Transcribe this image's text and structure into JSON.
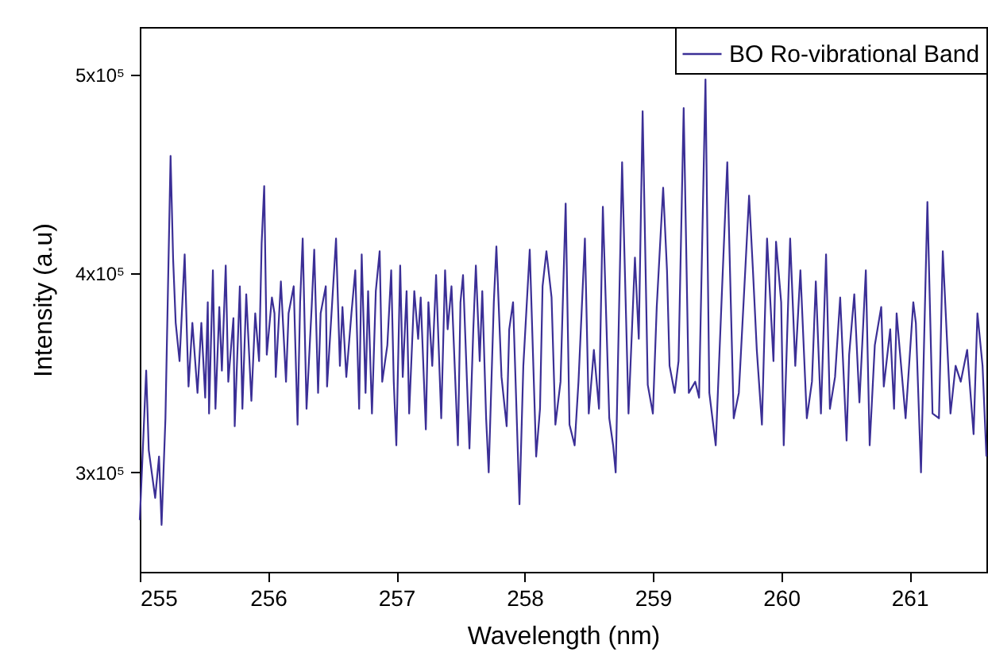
{
  "chart_data": {
    "type": "line",
    "xlabel": "Wavelength (nm)",
    "ylabel": "Intensity (a.u)",
    "xlim": [
      255,
      261.6
    ],
    "ylim": [
      250000,
      524000
    ],
    "xticks": [
      255,
      256,
      257,
      258,
      259,
      260,
      261
    ],
    "yticks": [
      {
        "value": 300000,
        "label": "3x10⁵"
      },
      {
        "value": 400000,
        "label": "4x10⁵"
      },
      {
        "value": 500000,
        "label": "5x10⁵"
      }
    ],
    "grid": false,
    "legend": "top right",
    "marker": "none",
    "line_style": "solid",
    "x": [
      255.0,
      255.05,
      255.07,
      255.12,
      255.15,
      255.17,
      255.2,
      255.24,
      255.26,
      255.28,
      255.31,
      255.35,
      255.37,
      255.38,
      255.41,
      255.45,
      255.48,
      255.51,
      255.53,
      255.54,
      255.57,
      255.59,
      255.62,
      255.64,
      255.67,
      255.69,
      255.73,
      255.74,
      255.78,
      255.8,
      255.83,
      255.87,
      255.9,
      255.93,
      255.95,
      255.97,
      255.99,
      256.03,
      256.05,
      256.06,
      256.1,
      256.14,
      256.16,
      256.2,
      256.23,
      256.25,
      256.27,
      256.3,
      256.34,
      256.36,
      256.39,
      256.41,
      256.45,
      256.46,
      256.5,
      256.53,
      256.56,
      256.58,
      256.61,
      256.65,
      256.68,
      256.71,
      256.73,
      256.76,
      256.78,
      256.81,
      256.84,
      256.87,
      256.89,
      256.93,
      256.96,
      256.98,
      257.0,
      257.03,
      257.05,
      257.08,
      257.1,
      257.14,
      257.17,
      257.19,
      257.23,
      257.25,
      257.28,
      257.31,
      257.35,
      257.38,
      257.4,
      257.43,
      257.48,
      257.5,
      257.52,
      257.57,
      257.6,
      257.62,
      257.65,
      257.67,
      257.7,
      257.72,
      257.76,
      257.78,
      257.82,
      257.86,
      257.88,
      257.91,
      257.96,
      257.99,
      258.04,
      258.09,
      258.12,
      258.14,
      258.17,
      258.21,
      258.24,
      258.28,
      258.32,
      258.35,
      258.39,
      258.42,
      258.47,
      258.5,
      258.54,
      258.58,
      258.61,
      258.66,
      258.69,
      258.71,
      258.76,
      258.81,
      258.86,
      258.89,
      258.92,
      258.96,
      259.0,
      259.03,
      259.08,
      259.11,
      259.13,
      259.17,
      259.2,
      259.24,
      259.28,
      259.33,
      259.36,
      259.41,
      259.44,
      259.49,
      259.54,
      259.58,
      259.63,
      259.67,
      259.72,
      259.75,
      259.78,
      259.81,
      259.85,
      259.89,
      259.94,
      259.96,
      260.0,
      260.02,
      260.07,
      260.11,
      260.15,
      260.2,
      260.24,
      260.27,
      260.31,
      260.35,
      260.38,
      260.42,
      260.46,
      260.51,
      260.53,
      260.57,
      260.61,
      260.66,
      260.69,
      260.73,
      260.78,
      260.8,
      260.85,
      260.88,
      260.9,
      260.97,
      261.03,
      261.05,
      261.09,
      261.14,
      261.18,
      261.23,
      261.26,
      261.32,
      261.36,
      261.4,
      261.45,
      261.5,
      261.53,
      261.57,
      261.6
    ],
    "series": [
      {
        "name": "BO Ro-vibrational Band",
        "color": "#3b2f96",
        "values": [
          276000,
          351200,
          311200,
          287200,
          308000,
          273600,
          327200,
          459200,
          407200,
          375200,
          356000,
          409600,
          364000,
          343200,
          375200,
          340000,
          375200,
          337600,
          385600,
          329600,
          401600,
          332000,
          383200,
          351200,
          404000,
          345600,
          377600,
          323200,
          393600,
          332000,
          389600,
          336000,
          380000,
          356000,
          415200,
          444000,
          359200,
          388000,
          380000,
          348000,
          396000,
          345600,
          380000,
          393600,
          324000,
          385600,
          417600,
          332000,
          383200,
          412000,
          340000,
          380000,
          393600,
          343200,
          385600,
          417600,
          353600,
          383200,
          348000,
          380000,
          401600,
          332000,
          409600,
          340000,
          391200,
          329600,
          391200,
          411200,
          345600,
          364000,
          401600,
          345600,
          313600,
          404000,
          348000,
          391200,
          329600,
          391200,
          367200,
          388000,
          321600,
          385600,
          353600,
          399200,
          327200,
          401600,
          372000,
          393600,
          313600,
          385600,
          399200,
          312000,
          372000,
          404000,
          356000,
          391200,
          327200,
          300000,
          385600,
          413600,
          348000,
          323200,
          372000,
          385600,
          284000,
          353600,
          412000,
          308000,
          332000,
          393600,
          411200,
          388000,
          324000,
          345600,
          435200,
          324000,
          313600,
          345600,
          417600,
          329600,
          361600,
          332000,
          433600,
          327200,
          313600,
          300000,
          456000,
          329600,
          408000,
          367200,
          481600,
          344000,
          329600,
          383200,
          443200,
          401600,
          353600,
          340000,
          356000,
          483200,
          340000,
          345600,
          337600,
          497600,
          340000,
          313600,
          393600,
          456000,
          327200,
          340000,
          401600,
          439200,
          401600,
          361600,
          324000,
          417600,
          356000,
          416000,
          385600,
          313600,
          417600,
          353600,
          401600,
          327200,
          345600,
          396000,
          329600,
          409600,
          332000,
          348000,
          388000,
          316000,
          359200,
          389600,
          335200,
          401600,
          313600,
          364000,
          383200,
          343200,
          372000,
          332000,
          380000,
          327200,
          385600,
          375200,
          300000,
          436000,
          329600,
          327200,
          411200,
          329600,
          353600,
          345600,
          361600,
          319200,
          380000,
          353600,
          308000
        ]
      }
    ]
  }
}
